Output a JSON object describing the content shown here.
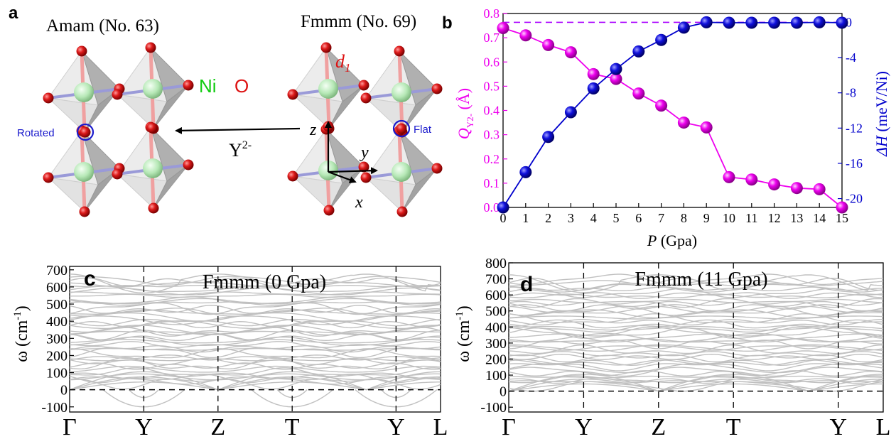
{
  "panel_a": {
    "letter": "a",
    "left_title": "Amam (No. 63)",
    "right_title": "Fmmm (No. 69)",
    "ni_label": "Ni",
    "o_label": "O",
    "d1_label": "d",
    "d1_sub": "1",
    "rotated_label": "Rotated",
    "flat_label": "Flat",
    "mode_label": "Y",
    "mode_sup": "2-",
    "axis_z": "z",
    "axis_y": "y",
    "axis_x": "x",
    "colors": {
      "oxygen": "#cc1111",
      "nickel": "#99dd99",
      "label_blue": "#1a1acc",
      "label_green": "#11cc11",
      "label_red": "#dd1111"
    }
  },
  "panel_b": {
    "letter": "b",
    "left_axis_label": "Q",
    "left_axis_sub": "Y2-",
    "left_axis_unit": " (Å)",
    "right_axis_label": "ΔH",
    "right_axis_unit": " (meV/Ni)",
    "x_label": "P",
    "x_unit": " (Gpa)",
    "colors": {
      "q": "#ee00ee",
      "h": "#0000cc"
    }
  },
  "panel_c": {
    "letter": "c",
    "title": "Fmmm (0 Gpa)",
    "ylabel": "ω (cm",
    "ylabel_sup": "-1",
    "ylabel_end": ")"
  },
  "panel_d": {
    "letter": "d",
    "title": "Fmmm (11 Gpa)",
    "ylabel": "ω (cm",
    "ylabel_sup": "-1",
    "ylabel_end": ")"
  },
  "chart_data": [
    {
      "type": "line",
      "title": "",
      "xlabel": "P (Gpa)",
      "x": [
        0,
        1,
        2,
        3,
        4,
        5,
        6,
        7,
        8,
        9,
        10,
        11,
        12,
        13,
        14,
        15
      ],
      "xlim": [
        0,
        15
      ],
      "series": [
        {
          "name": "Q_Y2- (Å)",
          "axis": "left",
          "ylim": [
            0,
            0.8
          ],
          "values": [
            0.74,
            0.71,
            0.67,
            0.64,
            0.55,
            0.53,
            0.47,
            0.42,
            0.35,
            0.33,
            0.125,
            0.115,
            0.095,
            0.08,
            0.075,
            0.0
          ]
        },
        {
          "name": "ΔH (meV/Ni)",
          "axis": "right",
          "ylim": [
            -21,
            1
          ],
          "values": [
            -21.0,
            -17.0,
            -13.0,
            -10.2,
            -7.5,
            -5.3,
            -3.3,
            -2.0,
            -0.6,
            0.0,
            -0.05,
            -0.05,
            -0.05,
            -0.05,
            0.0,
            -0.05
          ]
        }
      ],
      "left_ticks": [
        "0.0",
        "0.1",
        "0.2",
        "0.3",
        "0.4",
        "0.5",
        "0.6",
        "0.7",
        "0.8"
      ],
      "right_ticks": [
        "0",
        "-4",
        "-8",
        "-12",
        "-16",
        "-20"
      ],
      "x_ticks": [
        "0",
        "1",
        "2",
        "3",
        "4",
        "5",
        "6",
        "7",
        "8",
        "9",
        "10",
        "11",
        "12",
        "13",
        "14",
        "15"
      ],
      "reference_lines": [
        {
          "axis": "right",
          "y": 0,
          "style": "dashed",
          "color": "#aa00ff"
        }
      ]
    },
    {
      "type": "line",
      "title": "Fmmm (0 Gpa)",
      "ylabel": "ω (cm-1)",
      "ylim": [
        -130,
        720
      ],
      "y_ticks": [
        "-100",
        "0",
        "100",
        "200",
        "300",
        "400",
        "500",
        "600",
        "700"
      ],
      "k_labels": [
        "Γ",
        "Y",
        "Z",
        "T",
        "Y",
        "L"
      ],
      "k_positions": [
        0,
        1,
        2,
        3,
        4.4,
        5
      ],
      "series_color": "#c0c0c0",
      "zero_line": "dashed",
      "imaginary_min": -100
    },
    {
      "type": "line",
      "title": "Fmmm (11 Gpa)",
      "ylabel": "ω (cm-1)",
      "ylim": [
        -130,
        800
      ],
      "y_ticks": [
        "-100",
        "0",
        "100",
        "200",
        "300",
        "400",
        "500",
        "600",
        "700",
        "800"
      ],
      "k_labels": [
        "Γ",
        "Y",
        "Z",
        "T",
        "Y",
        "L"
      ],
      "k_positions": [
        0,
        1,
        2,
        3,
        4.4,
        5
      ],
      "series_color": "#c0c0c0",
      "zero_line": "dashed"
    }
  ]
}
